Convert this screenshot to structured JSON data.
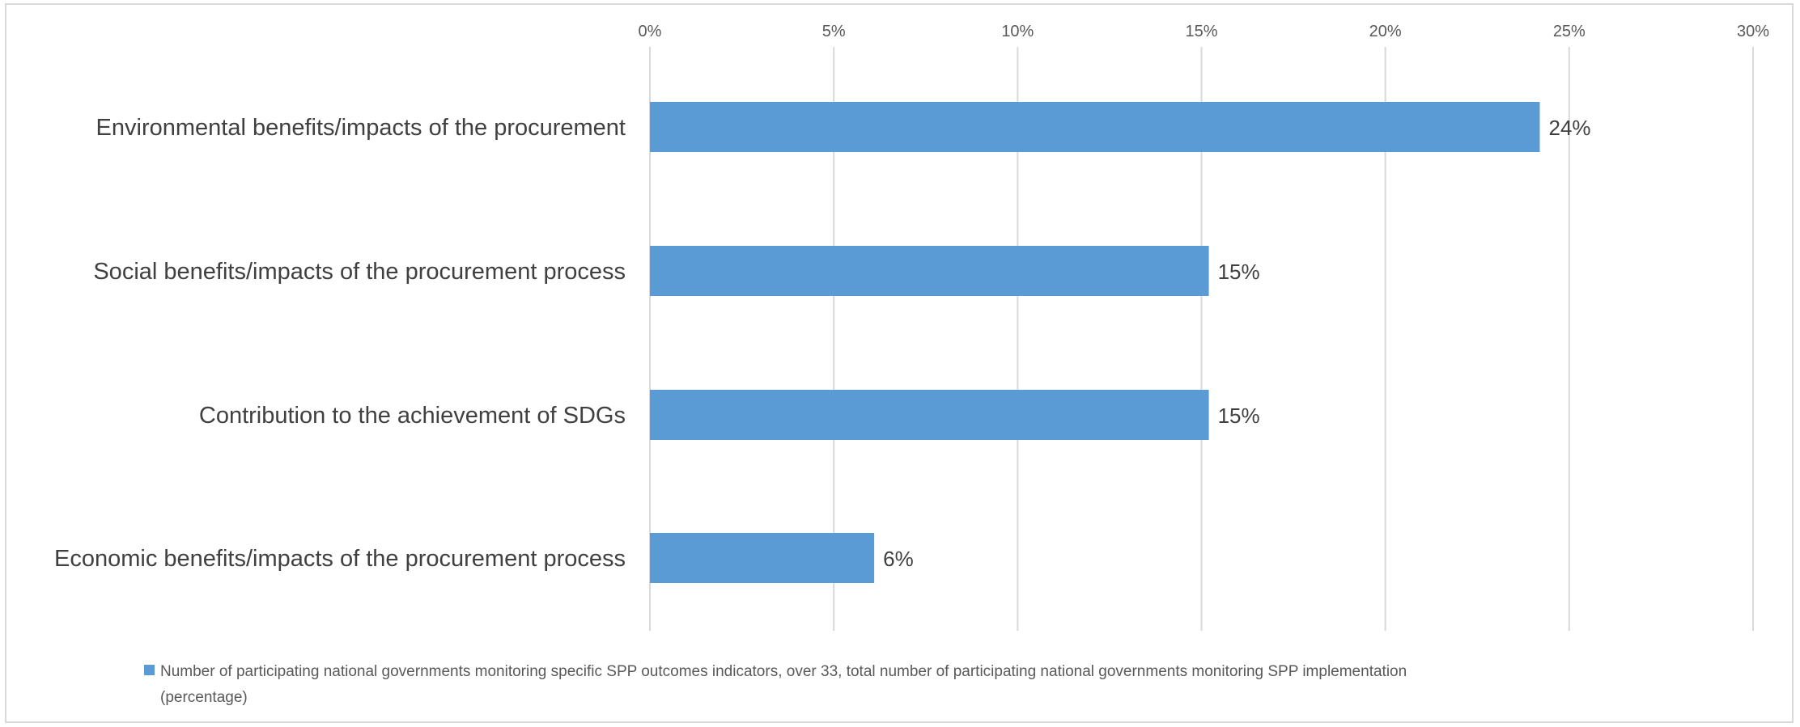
{
  "chart_data": {
    "type": "bar",
    "orientation": "horizontal",
    "title": "",
    "categories": [
      "Environmental benefits/impacts of the procurement",
      "Social benefits/impacts of the procurement process",
      "Contribution to the achievement of SDGs",
      "Economic benefits/impacts of the procurement process"
    ],
    "series": [
      {
        "name": "Number of participating national governments monitoring specific SPP outcomes indicators, over 33, total number of participating national governments monitoring SPP implementation (percentage)",
        "values": [
          24.2,
          15.2,
          15.2,
          6.1
        ],
        "data_labels": [
          "24%",
          "15%",
          "15%",
          "6%"
        ],
        "color": "#5b9bd5"
      }
    ],
    "x_axis": {
      "position": "top",
      "range": [
        0,
        30
      ],
      "ticks": [
        0,
        5,
        10,
        15,
        20,
        25,
        30
      ],
      "tick_labels": [
        "0%",
        "5%",
        "10%",
        "15%",
        "20%",
        "25%",
        "30%"
      ]
    },
    "gridlines": true,
    "legend": {
      "position": "bottom",
      "lines": [
        "Number of participating national governments monitoring specific SPP outcomes indicators, over 33, total number of participating national governments monitoring SPP implementation",
        "(percentage)"
      ]
    }
  }
}
